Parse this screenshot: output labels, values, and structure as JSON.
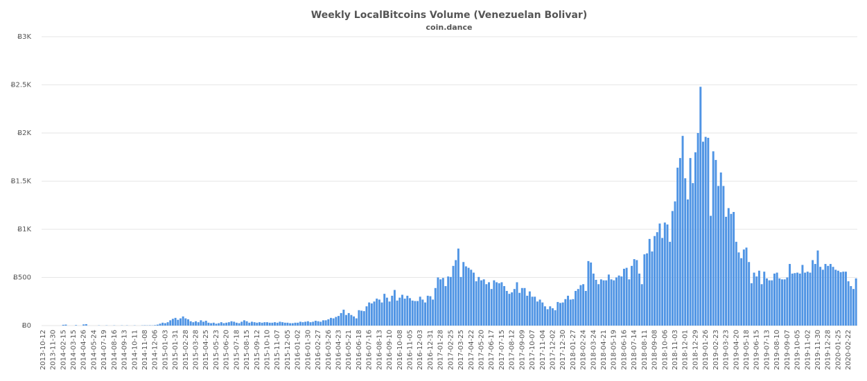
{
  "chart_data": {
    "type": "bar",
    "title": "Weekly LocalBitcoins Volume (Venezuelan Bolivar)",
    "subtitle": "coin.dance",
    "color": "#4f94e4",
    "grid": true,
    "ylim": [
      0,
      3000
    ],
    "yticks": [
      {
        "value": 0,
        "label": "Ƀ0"
      },
      {
        "value": 500,
        "label": "Ƀ500"
      },
      {
        "value": 1000,
        "label": "Ƀ1K"
      },
      {
        "value": 1500,
        "label": "Ƀ1.5K"
      },
      {
        "value": 2000,
        "label": "Ƀ2K"
      },
      {
        "value": 2500,
        "label": "Ƀ2.5K"
      },
      {
        "value": 3000,
        "label": "Ƀ3K"
      }
    ],
    "categories": [
      "2013-10-12",
      null,
      null,
      null,
      "2013-11-30",
      null,
      null,
      null,
      "2014-02-15",
      null,
      null,
      null,
      "2014-03-15",
      null,
      null,
      null,
      "2014-04-26",
      null,
      null,
      null,
      "2014-05-24",
      null,
      null,
      null,
      "2014-07-19",
      null,
      null,
      null,
      "2014-08-16",
      null,
      null,
      null,
      "2014-09-13",
      null,
      null,
      null,
      "2014-10-11",
      null,
      null,
      null,
      "2014-11-08",
      null,
      null,
      null,
      "2014-12-06",
      null,
      null,
      null,
      "2015-01-03",
      null,
      null,
      null,
      "2015-01-31",
      null,
      null,
      null,
      "2015-02-28",
      null,
      null,
      null,
      "2015-03-28",
      null,
      null,
      null,
      "2015-04-25",
      null,
      null,
      null,
      "2015-05-23",
      null,
      null,
      null,
      "2015-06-20",
      null,
      null,
      null,
      "2015-07-18",
      null,
      null,
      null,
      "2015-08-15",
      null,
      null,
      null,
      "2015-09-12",
      null,
      null,
      null,
      "2015-10-10",
      null,
      null,
      null,
      "2015-11-07",
      null,
      null,
      null,
      "2015-12-05",
      null,
      null,
      null,
      "2016-01-02",
      null,
      null,
      null,
      "2016-01-30",
      null,
      null,
      null,
      "2016-02-27",
      null,
      null,
      null,
      "2016-03-26",
      null,
      null,
      null,
      "2016-04-23",
      null,
      null,
      null,
      "2016-05-21",
      null,
      null,
      null,
      "2016-06-18",
      null,
      null,
      null,
      "2016-07-16",
      null,
      null,
      null,
      "2016-08-13",
      null,
      null,
      null,
      "2016-09-10",
      null,
      null,
      null,
      "2016-10-08",
      null,
      null,
      null,
      "2016-11-05",
      null,
      null,
      null,
      "2016-12-03",
      null,
      null,
      null,
      "2016-12-31",
      null,
      null,
      null,
      "2017-01-28",
      null,
      null,
      null,
      "2017-02-25",
      null,
      null,
      null,
      "2017-03-25",
      null,
      null,
      null,
      "2017-04-22",
      null,
      null,
      null,
      "2017-05-20",
      null,
      null,
      null,
      "2017-06-17",
      null,
      null,
      null,
      "2017-07-15",
      null,
      null,
      null,
      "2017-08-12",
      null,
      null,
      null,
      "2017-09-09",
      null,
      null,
      null,
      "2017-10-07",
      null,
      null,
      null,
      "2017-11-04",
      null,
      null,
      null,
      "2017-12-02",
      null,
      null,
      null,
      "2017-12-30",
      null,
      null,
      null,
      "2018-01-27",
      null,
      null,
      null,
      "2018-02-24",
      null,
      null,
      null,
      "2018-03-24",
      null,
      null,
      null,
      "2018-04-21",
      null,
      null,
      null,
      "2018-05-19",
      null,
      null,
      null,
      "2018-06-16",
      null,
      null,
      null,
      "2018-07-14",
      null,
      null,
      null,
      "2018-08-11",
      null,
      null,
      null,
      "2018-09-08",
      null,
      null,
      null,
      "2018-10-06",
      null,
      null,
      null,
      "2018-11-03",
      null,
      null,
      null,
      "2018-12-01",
      null,
      null,
      null,
      "2018-12-29",
      null,
      null,
      null,
      "2019-01-26",
      null,
      null,
      null,
      "2019-02-23",
      null,
      null,
      null,
      "2019-03-23",
      null,
      null,
      null,
      "2019-04-20",
      null,
      null,
      null,
      "2019-05-18",
      null,
      null,
      null,
      "2019-06-15",
      null,
      null,
      null,
      "2019-07-13",
      null,
      null,
      null,
      "2019-08-10",
      null,
      null,
      null,
      "2019-09-07",
      null,
      null,
      null,
      "2019-10-05",
      null,
      null,
      null,
      "2019-11-02",
      null,
      null,
      null,
      "2019-11-30",
      null,
      null,
      null,
      "2019-12-28",
      null,
      null,
      null,
      "2020-01-25",
      null,
      null,
      null,
      "2020-02-22",
      null,
      null,
      null
    ],
    "values": [
      0,
      0,
      0,
      0,
      0,
      0,
      0,
      0,
      8,
      10,
      0,
      0,
      0,
      5,
      0,
      0,
      12,
      15,
      0,
      0,
      0,
      0,
      2,
      0,
      0,
      2,
      0,
      0,
      2,
      0,
      0,
      2,
      0,
      2,
      0,
      0,
      2,
      0,
      0,
      2,
      3,
      2,
      3,
      2,
      5,
      10,
      20,
      30,
      25,
      35,
      55,
      70,
      80,
      60,
      75,
      95,
      75,
      65,
      45,
      35,
      45,
      35,
      55,
      40,
      50,
      30,
      25,
      30,
      20,
      25,
      35,
      25,
      30,
      35,
      45,
      40,
      30,
      25,
      40,
      55,
      45,
      30,
      40,
      35,
      30,
      35,
      30,
      35,
      35,
      30,
      30,
      35,
      30,
      40,
      35,
      30,
      30,
      25,
      25,
      30,
      30,
      40,
      35,
      40,
      45,
      35,
      40,
      50,
      45,
      40,
      55,
      55,
      65,
      80,
      75,
      90,
      100,
      130,
      165,
      110,
      130,
      110,
      95,
      75,
      160,
      155,
      150,
      200,
      240,
      230,
      250,
      280,
      270,
      240,
      330,
      290,
      250,
      310,
      370,
      260,
      290,
      320,
      280,
      310,
      285,
      260,
      255,
      255,
      300,
      270,
      240,
      310,
      305,
      270,
      390,
      500,
      480,
      495,
      410,
      510,
      505,
      620,
      680,
      800,
      505,
      660,
      615,
      600,
      580,
      550,
      460,
      505,
      470,
      480,
      430,
      450,
      380,
      470,
      450,
      440,
      450,
      410,
      360,
      330,
      345,
      380,
      450,
      340,
      390,
      390,
      310,
      355,
      300,
      300,
      250,
      270,
      240,
      200,
      170,
      200,
      180,
      160,
      245,
      235,
      240,
      275,
      310,
      270,
      275,
      360,
      380,
      420,
      430,
      360,
      670,
      655,
      540,
      475,
      430,
      480,
      470,
      470,
      530,
      480,
      470,
      500,
      520,
      510,
      590,
      600,
      480,
      620,
      690,
      680,
      540,
      430,
      740,
      750,
      900,
      770,
      930,
      970,
      1060,
      910,
      1070,
      1050,
      870,
      1190,
      1290,
      1640,
      1740,
      1970,
      1530,
      1310,
      1740,
      1480,
      1800,
      2000,
      2480,
      1910,
      1960,
      1950,
      1140,
      1810,
      1720,
      1450,
      1590,
      1450,
      1130,
      1220,
      1160,
      1180,
      870,
      760,
      700,
      790,
      810,
      660,
      440,
      550,
      510,
      570,
      430,
      560,
      490,
      470,
      470,
      540,
      550,
      490,
      480,
      480,
      500,
      640,
      540,
      545,
      550,
      540,
      630,
      550,
      560,
      550,
      680,
      640,
      780,
      610,
      580,
      640,
      620,
      640,
      610,
      580,
      570,
      555,
      560,
      560,
      460,
      410,
      380,
      490
    ]
  }
}
